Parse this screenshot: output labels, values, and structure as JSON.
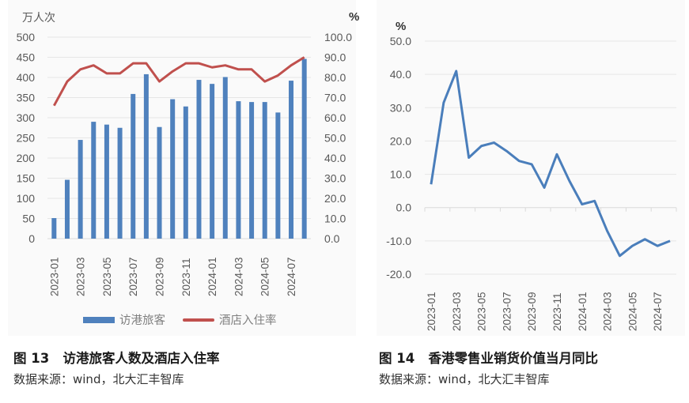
{
  "figure13": {
    "label": "图 13",
    "title": "访港旅客人数及酒店入住率",
    "source": "数据来源：wind，北大汇丰智库",
    "left_axis_unit": "万人次",
    "right_axis_unit": "%",
    "legend": [
      "访港旅客",
      "酒店入住率"
    ]
  },
  "figure14": {
    "label": "图 14",
    "title": "香港零售业销货价值当月同比",
    "source": "数据来源：wind，北大汇丰智库",
    "axis_unit": "%"
  },
  "colors": {
    "bar": "#4f81bd",
    "line_red": "#c0504d",
    "line_blue": "#4a7ebb",
    "grid": "#e6e6e6",
    "tick_text": "#595959"
  },
  "chart_data": [
    {
      "type": "bar+line",
      "title": "访港旅客人数及酒店入住率",
      "x": [
        "2023-01",
        "2023-02",
        "2023-03",
        "2023-04",
        "2023-05",
        "2023-06",
        "2023-07",
        "2023-08",
        "2023-09",
        "2023-10",
        "2023-11",
        "2023-12",
        "2024-01",
        "2024-02",
        "2024-03",
        "2024-04",
        "2024-05",
        "2024-06",
        "2024-07",
        "2024-08"
      ],
      "xtick_labels": [
        "2023-01",
        "2023-03",
        "2023-05",
        "2023-07",
        "2023-09",
        "2023-11",
        "2024-01",
        "2024-03",
        "2024-05",
        "2024-07"
      ],
      "series": [
        {
          "name": "访港旅客",
          "type": "bar",
          "axis": "left",
          "values": [
            51,
            146,
            245,
            290,
            283,
            275,
            359,
            408,
            277,
            346,
            328,
            394,
            384,
            401,
            341,
            339,
            339,
            313,
            392,
            446
          ]
        },
        {
          "name": "酒店入住率",
          "type": "line",
          "axis": "right",
          "values": [
            66,
            78,
            84,
            86,
            82,
            82,
            87,
            87,
            78,
            83,
            87,
            87,
            85,
            86,
            84,
            84,
            78,
            81,
            86,
            90
          ]
        }
      ],
      "ylabel_left": "万人次",
      "ylim_left": [
        0,
        500
      ],
      "yticks_left": [
        "0",
        "50",
        "100",
        "150",
        "200",
        "250",
        "300",
        "350",
        "400",
        "450",
        "500"
      ],
      "ylabel_right": "%",
      "ylim_right": [
        0,
        100
      ],
      "yticks_right": [
        "0.0",
        "10.0",
        "20.0",
        "30.0",
        "40.0",
        "50.0",
        "60.0",
        "70.0",
        "80.0",
        "90.0",
        "100.0"
      ],
      "grid": true,
      "legend_position": "bottom"
    },
    {
      "type": "line",
      "title": "香港零售业销货价值当月同比",
      "x": [
        "2023-01",
        "2023-02",
        "2023-03",
        "2023-04",
        "2023-05",
        "2023-06",
        "2023-07",
        "2023-08",
        "2023-09",
        "2023-10",
        "2023-11",
        "2023-12",
        "2024-01",
        "2024-02",
        "2024-03",
        "2024-04",
        "2024-05",
        "2024-06",
        "2024-07",
        "2024-08"
      ],
      "xtick_labels": [
        "2023-01",
        "2023-03",
        "2023-05",
        "2023-07",
        "2023-09",
        "2023-11",
        "2024-01",
        "2024-03",
        "2024-05",
        "2024-07"
      ],
      "series": [
        {
          "name": "香港零售业销货价值当月同比",
          "values": [
            7,
            31.5,
            41,
            15,
            18.5,
            19.5,
            17,
            14,
            13,
            6,
            16,
            8,
            1,
            2,
            -7,
            -14.5,
            -11.5,
            -9.5,
            -11.5,
            -10
          ]
        }
      ],
      "ylabel": "%",
      "ylim": [
        -20,
        50
      ],
      "yticks": [
        "-20.0",
        "-10.0",
        "0.0",
        "10.0",
        "20.0",
        "30.0",
        "40.0",
        "50.0"
      ],
      "grid": true,
      "legend_position": "none"
    }
  ]
}
